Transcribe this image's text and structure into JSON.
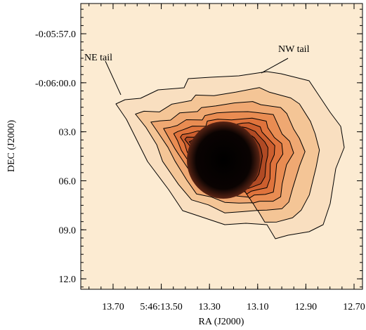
{
  "chart_data": {
    "type": "image",
    "xlabel": "RA (J2000)",
    "ylabel": "DEC (J2000)",
    "xlim": [
      13.834,
      12.665
    ],
    "ylim": [
      -372.64,
      -355.15
    ],
    "xticks": [
      {
        "value": 13.7,
        "label": "13.70"
      },
      {
        "value": 13.5,
        "label": "5:46:13.50"
      },
      {
        "value": 13.3,
        "label": "13.30"
      },
      {
        "value": 13.1,
        "label": "13.10"
      },
      {
        "value": 12.9,
        "label": "12.90"
      },
      {
        "value": 12.7,
        "label": "12.70"
      }
    ],
    "yticks": [
      {
        "value": -357,
        "label": "-0:05:57.0"
      },
      {
        "value": -360,
        "label": "-0:06:00.0"
      },
      {
        "value": -363,
        "label": "03.0"
      },
      {
        "value": -366,
        "label": "06.0"
      },
      {
        "value": -369,
        "label": "09.0"
      },
      {
        "value": -372,
        "label": "12.0"
      }
    ],
    "annotations": [
      "NE tail",
      "NW tail"
    ]
  }
}
